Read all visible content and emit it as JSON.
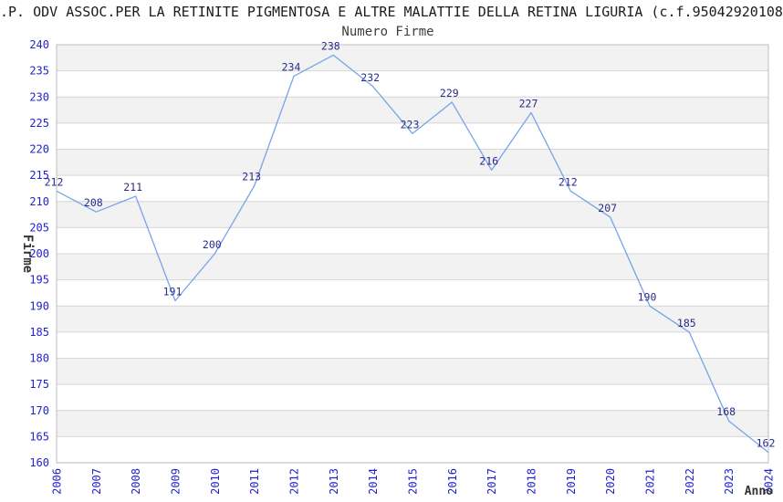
{
  "chart_data": {
    "type": "line",
    "title": ".P. ODV ASSOC.PER LA RETINITE PIGMENTOSA E ALTRE MALATTIE DELLA RETINA LIGURIA (c.f.95042920108",
    "subtitle": "Numero Firme",
    "xlabel": "Anno",
    "ylabel": "Firme",
    "categories": [
      "2006",
      "2007",
      "2008",
      "2009",
      "2010",
      "2011",
      "2012",
      "2013",
      "2014",
      "2015",
      "2016",
      "2017",
      "2018",
      "2019",
      "2020",
      "2021",
      "2022",
      "2023",
      "2024"
    ],
    "values": [
      212,
      208,
      211,
      191,
      200,
      213,
      234,
      238,
      232,
      223,
      229,
      216,
      227,
      212,
      207,
      190,
      185,
      168,
      162
    ],
    "ylim": [
      160,
      240
    ],
    "ytick_step": 5,
    "grid": true,
    "banded_background": true,
    "legend": "none",
    "colors": {
      "line": "#78a4e8",
      "tick_label": "#2323cc",
      "data_label": "#2b2b8c",
      "band": "#f2f2f2",
      "gridline": "#d6d6d6",
      "plot_border": "#bdbdbd",
      "title": "#1c1c1c",
      "subtitle": "#3c3c3c",
      "axis_title": "#333333"
    }
  }
}
